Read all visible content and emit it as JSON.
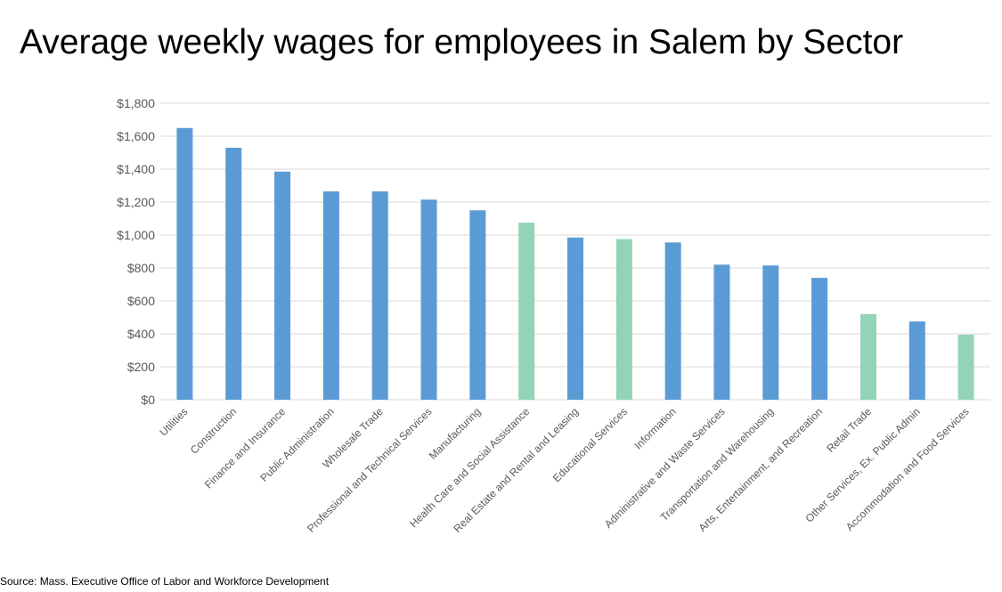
{
  "chart_data": {
    "type": "bar",
    "title": "Average weekly wages for employees in Salem by Sector",
    "xlabel": "",
    "ylabel": "",
    "ylim": [
      0,
      1800
    ],
    "yticks": [
      0,
      200,
      400,
      600,
      800,
      1000,
      1200,
      1400,
      1600,
      1800
    ],
    "ytick_labels": [
      "$0",
      "$200",
      "$400",
      "$600",
      "$800",
      "$1,000",
      "$1,200",
      "$1,400",
      "$1,600",
      "$1,800"
    ],
    "grid": true,
    "legend": "none",
    "categories": [
      "Utilities",
      "Construction",
      "Finance and Insurance",
      "Public Administration",
      "Wholesale Trade",
      "Professional and Technical Services",
      "Manufacturing",
      "Health Care and Social Assistance",
      "Real Estate and Rental and Leasing",
      "Educational Services",
      "Information",
      "Administrative and Waste Services",
      "Transportation and Warehousing",
      "Arts, Entertainment, and Recreation",
      "Retail Trade",
      "Other Services, Ex. Public Admin",
      "Accommodation and Food Services"
    ],
    "values": [
      1650,
      1530,
      1385,
      1265,
      1265,
      1215,
      1150,
      1075,
      985,
      975,
      955,
      820,
      815,
      740,
      520,
      475,
      395
    ],
    "bar_colors": [
      "#5B9BD5",
      "#5B9BD5",
      "#5B9BD5",
      "#5B9BD5",
      "#5B9BD5",
      "#5B9BD5",
      "#5B9BD5",
      "#93D3B8",
      "#5B9BD5",
      "#93D3B8",
      "#5B9BD5",
      "#5B9BD5",
      "#5B9BD5",
      "#5B9BD5",
      "#93D3B8",
      "#5B9BD5",
      "#93D3B8"
    ],
    "gridline_color": "#D9D9D9",
    "source": "Source: Mass. Executive Office of Labor and Workforce Development"
  }
}
